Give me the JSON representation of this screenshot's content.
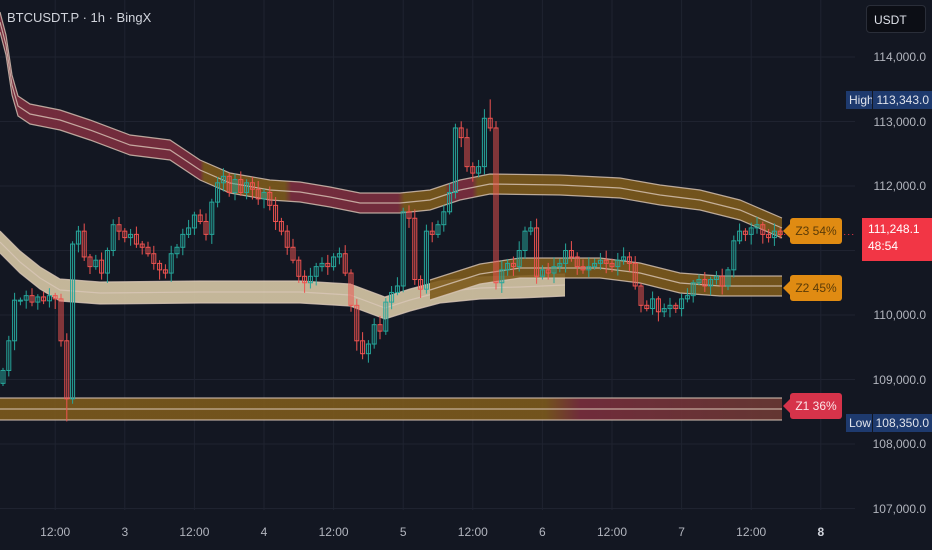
{
  "header": {
    "symbol_title": "BTCUSDT.P · 1h · BingX",
    "currency_button": "USDT"
  },
  "colors": {
    "background": "#131722",
    "up": "#26a69a",
    "down": "#ef5350",
    "band_red": "#7d2e3f",
    "band_amber": "#7d5a1c",
    "band_beige": "#d7c8a6",
    "zone_amber": "#e08b12",
    "zone_red": "#d6334a",
    "last_price": "#f23645",
    "hl_label": "#1e3a6e"
  },
  "chart_data": {
    "type": "candlestick",
    "ylim": [
      106800,
      114700
    ],
    "y_ticks": [
      {
        "v": 114000,
        "label": "114,000.0"
      },
      {
        "v": 113000,
        "label": "113,000.0"
      },
      {
        "v": 112000,
        "label": "112,000.0"
      },
      {
        "v": 110000,
        "label": "110,000.0"
      },
      {
        "v": 109000,
        "label": "109,000.0"
      },
      {
        "v": 108000,
        "label": "108,000.0"
      },
      {
        "v": 107000,
        "label": "107,000.0"
      }
    ],
    "x_ticks": [
      {
        "i": 9,
        "label": "12:00"
      },
      {
        "i": 21,
        "label": "3"
      },
      {
        "i": 33,
        "label": "12:00"
      },
      {
        "i": 45,
        "label": "4"
      },
      {
        "i": 57,
        "label": "12:00"
      },
      {
        "i": 69,
        "label": "5"
      },
      {
        "i": 81,
        "label": "12:00"
      },
      {
        "i": 93,
        "label": "6"
      },
      {
        "i": 105,
        "label": "12:00"
      },
      {
        "i": 117,
        "label": "7"
      },
      {
        "i": 129,
        "label": "12:00"
      },
      {
        "i": 141,
        "label": "8",
        "bold": true
      }
    ],
    "close": [
      109140,
      109600,
      110230,
      110230,
      110300,
      110200,
      110280,
      110220,
      110300,
      110250,
      109600,
      108700,
      111100,
      111300,
      110900,
      110750,
      110850,
      110650,
      111000,
      111400,
      111300,
      111200,
      111250,
      111100,
      111050,
      110950,
      110800,
      110700,
      110650,
      110950,
      111050,
      111250,
      111350,
      111550,
      111450,
      111250,
      111750,
      112050,
      112150,
      111900,
      112100,
      111900,
      112050,
      111950,
      111800,
      111900,
      111700,
      111450,
      111300,
      111050,
      110850,
      110600,
      110500,
      110600,
      110750,
      110800,
      110750,
      110900,
      110950,
      110650,
      110150,
      109600,
      109400,
      109550,
      109850,
      109750,
      110200,
      110350,
      110450,
      111600,
      111500,
      110550,
      110400,
      111300,
      111250,
      111400,
      111600,
      111900,
      112900,
      112750,
      112300,
      112200,
      112300,
      113050,
      112900,
      110500,
      110700,
      110800,
      110750,
      111000,
      111300,
      111350,
      110600,
      110700,
      110650,
      110750,
      110800,
      111000,
      110900,
      110750,
      110700,
      110750,
      110800,
      110850,
      110800,
      110750,
      110850,
      110900,
      110800,
      110450,
      110150,
      110100,
      110250,
      110050,
      110100,
      110150,
      110100,
      110250,
      110300,
      110500,
      110550,
      110450,
      110550,
      110600,
      110450,
      110700,
      111150,
      111300,
      111250,
      111350,
      111400,
      111250,
      111200,
      111300,
      111248.1
    ],
    "high": 113343.0,
    "low": 108350.0,
    "last_price": {
      "value": "111,248.1",
      "countdown": "48:54"
    },
    "high_label": {
      "key": "High",
      "value": "113,343.0"
    },
    "low_label": {
      "key": "Low",
      "value": "108,350.0"
    },
    "zones": [
      {
        "label": "Z3 54%",
        "price": 111250,
        "color": "amber"
      },
      {
        "label": "Z2 45%",
        "price": 110370,
        "color": "amber"
      },
      {
        "label": "Z1 36%",
        "price": 108500,
        "color": "red"
      }
    ]
  }
}
